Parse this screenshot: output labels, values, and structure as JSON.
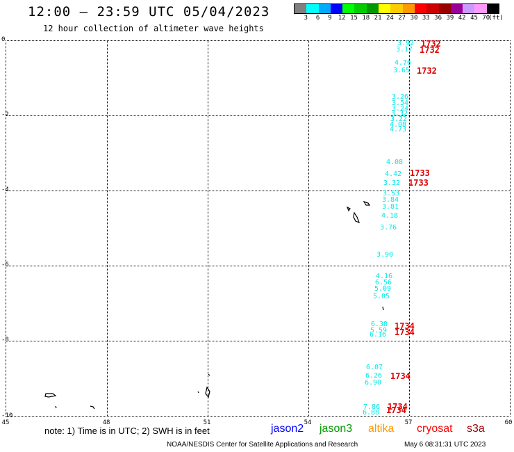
{
  "header": {
    "title": "12:00 – 23:59 UTC 05/04/2023",
    "subtitle": "12 hour collection of altimeter wave heights"
  },
  "legend": {
    "colors": [
      "#808080",
      "#00ffff",
      "#00aaff",
      "#0000ff",
      "#00ff00",
      "#00cc00",
      "#009900",
      "#ffff00",
      "#ffcc00",
      "#ff9900",
      "#ff0000",
      "#cc0000",
      "#990000",
      "#990099",
      "#cc99ff",
      "#ff99ff",
      "#000000"
    ],
    "ticks": [
      "3",
      "6",
      "9",
      "12",
      "15",
      "18",
      "21",
      "24",
      "27",
      "30",
      "33",
      "36",
      "39",
      "42",
      "45",
      "70",
      "(ft)"
    ]
  },
  "axes": {
    "y_labels": [
      "0",
      "-2",
      "-4",
      "-6",
      "-8",
      "-10"
    ],
    "x_labels": [
      "45",
      "48",
      "51",
      "54",
      "57",
      "60"
    ]
  },
  "observations": [
    {
      "v": "3.92",
      "c": "cyan"
    },
    {
      "v": "3.17",
      "c": "cyan"
    },
    {
      "v": "4.76",
      "c": "cyan"
    },
    {
      "v": "3.65",
      "c": "cyan"
    },
    {
      "v": "3.26",
      "c": "cyan"
    },
    {
      "v": "3.54",
      "c": "cyan"
    },
    {
      "v": "3.24",
      "c": "cyan"
    },
    {
      "v": "3.32",
      "c": "cyan"
    },
    {
      "v": "3.22",
      "c": "cyan"
    },
    {
      "v": "4.08",
      "c": "cyan"
    },
    {
      "v": "4.73",
      "c": "cyan"
    },
    {
      "v": "4.08",
      "c": "cyan"
    },
    {
      "v": "4.42",
      "c": "cyan"
    },
    {
      "v": "3.32",
      "c": "cyan"
    },
    {
      "v": "3.53",
      "c": "cyan"
    },
    {
      "v": "3.84",
      "c": "cyan"
    },
    {
      "v": "3.81",
      "c": "cyan"
    },
    {
      "v": "4.18",
      "c": "cyan"
    },
    {
      "v": "3.76",
      "c": "cyan"
    },
    {
      "v": "3.90",
      "c": "cyan"
    },
    {
      "v": "4.16",
      "c": "cyan"
    },
    {
      "v": "6.56",
      "c": "cyan"
    },
    {
      "v": "5.09",
      "c": "cyan"
    },
    {
      "v": "5.05",
      "c": "cyan"
    },
    {
      "v": "6.38",
      "c": "cyan"
    },
    {
      "v": "5.59",
      "c": "cyan"
    },
    {
      "v": "6.16",
      "c": "cyan"
    },
    {
      "v": "6.07",
      "c": "cyan"
    },
    {
      "v": "6.26",
      "c": "cyan"
    },
    {
      "v": "6.90",
      "c": "cyan"
    },
    {
      "v": "7.86",
      "c": "cyan"
    },
    {
      "v": "6.88",
      "c": "cyan"
    }
  ],
  "sat_times": [
    "1732",
    "1732",
    "1732",
    "1733",
    "1733",
    "1734",
    "1734",
    "1734",
    "1734",
    "1734"
  ],
  "note": "note: 1) Time is in UTC; 2) SWH is in feet",
  "satellites": [
    {
      "name": "jason2",
      "color": "#0000ff"
    },
    {
      "name": "jason3",
      "color": "#009900"
    },
    {
      "name": "altika",
      "color": "#ff9900"
    },
    {
      "name": "cryosat",
      "color": "#ff0000"
    },
    {
      "name": "s3a",
      "color": "#990000"
    }
  ],
  "footer": "NOAA/NESDIS Center for Satellite Applications and Research",
  "footer_time": "May  6 08:31:31 UTC 2023"
}
